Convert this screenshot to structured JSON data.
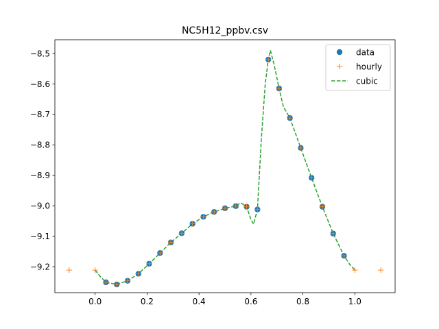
{
  "chart_data": {
    "type": "line",
    "title": "NC5H12_ppbv.csv",
    "xlabel": "",
    "ylabel": "",
    "xlim": [
      -0.155,
      1.155
    ],
    "ylim": [
      -9.285,
      -8.455
    ],
    "x_ticks": [
      0.0,
      0.2,
      0.4,
      0.6,
      0.8,
      1.0
    ],
    "x_tick_labels": [
      "0.0",
      "0.2",
      "0.4",
      "0.6",
      "0.8",
      "1.0"
    ],
    "y_ticks": [
      -9.2,
      -9.1,
      -9.0,
      -8.9,
      -8.8,
      -8.7,
      -8.6,
      -8.5
    ],
    "y_tick_labels": [
      "−9.2",
      "−9.1",
      "−9.0",
      "−8.9",
      "−8.8",
      "−8.7",
      "−8.6",
      "−8.5"
    ],
    "grid": false,
    "legend_position": "top-right",
    "series": [
      {
        "name": "data",
        "style": "markers",
        "marker": "circle",
        "color": "#1f77b4",
        "x": [
          0.0417,
          0.0833,
          0.125,
          0.1667,
          0.2083,
          0.25,
          0.2917,
          0.3333,
          0.375,
          0.4167,
          0.4583,
          0.5,
          0.5417,
          0.5833,
          0.625,
          0.6667,
          0.7083,
          0.75,
          0.7917,
          0.8333,
          0.875,
          0.9167,
          0.9583
        ],
        "y": [
          -9.251,
          -9.258,
          -9.246,
          -9.223,
          -9.19,
          -9.155,
          -9.12,
          -9.09,
          -9.059,
          -9.036,
          -9.02,
          -9.008,
          -9.001,
          -9.003,
          -9.012,
          -8.52,
          -8.615,
          -8.712,
          -8.81,
          -8.908,
          -9.003,
          -9.091,
          -9.164
        ]
      },
      {
        "name": "hourly",
        "style": "markers",
        "marker": "plus",
        "color": "#ff7f0e",
        "x": [
          -0.1,
          0.0,
          0.0417,
          0.0833,
          0.125,
          0.1667,
          0.2083,
          0.25,
          0.2917,
          0.3333,
          0.375,
          0.4167,
          0.4583,
          0.5,
          0.5417,
          0.5833,
          0.625,
          0.6667,
          0.7083,
          0.75,
          0.7917,
          0.8333,
          0.875,
          0.9167,
          0.9583,
          1.0,
          1.1
        ],
        "y": [
          -9.211,
          -9.211,
          -9.251,
          -9.258,
          -9.246,
          -9.223,
          -9.19,
          -9.155,
          -9.12,
          -9.09,
          -9.059,
          -9.036,
          -9.02,
          -9.008,
          -9.001,
          -9.003,
          -9.012,
          -8.52,
          -8.615,
          -8.712,
          -8.81,
          -8.908,
          -9.003,
          -9.091,
          -9.164,
          -9.211,
          -9.211
        ]
      },
      {
        "name": "cubic",
        "style": "dashed-line",
        "color": "#2ca02c",
        "x": [
          0.0,
          0.02,
          0.0417,
          0.0833,
          0.125,
          0.1667,
          0.2083,
          0.25,
          0.2917,
          0.3333,
          0.375,
          0.4167,
          0.4583,
          0.5,
          0.5417,
          0.56,
          0.5833,
          0.6,
          0.61,
          0.625,
          0.64,
          0.655,
          0.6667,
          0.675,
          0.69,
          0.7083,
          0.725,
          0.75,
          0.7917,
          0.8333,
          0.875,
          0.9167,
          0.9583,
          0.98,
          1.0
        ],
        "y": [
          -9.211,
          -9.232,
          -9.251,
          -9.258,
          -9.246,
          -9.223,
          -9.19,
          -9.155,
          -9.12,
          -9.09,
          -9.059,
          -9.036,
          -9.02,
          -9.008,
          -9.001,
          -8.99,
          -9.003,
          -9.045,
          -9.06,
          -9.012,
          -8.78,
          -8.6,
          -8.52,
          -8.49,
          -8.54,
          -8.615,
          -8.675,
          -8.712,
          -8.81,
          -8.908,
          -9.003,
          -9.091,
          -9.164,
          -9.192,
          -9.211
        ]
      }
    ]
  }
}
